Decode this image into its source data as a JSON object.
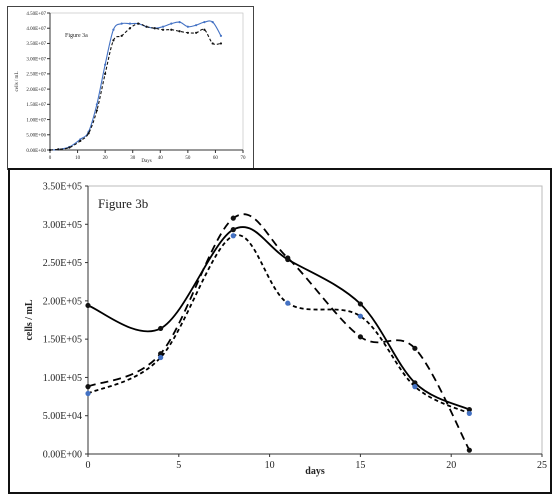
{
  "chart_data": [
    {
      "type": "line",
      "title": "Figure 3a",
      "xlabel": "Days",
      "ylabel": "cells / mL",
      "xlim": [
        0,
        70
      ],
      "ylim": [
        0,
        45000000
      ],
      "x_ticks": [
        0,
        10,
        20,
        30,
        40,
        50,
        60,
        70
      ],
      "x_tick_labels": [
        "0",
        "10",
        "20",
        "30",
        "40",
        "50",
        "60",
        "70"
      ],
      "y_ticks": [
        0,
        5000000,
        10000000,
        15000000,
        20000000,
        25000000,
        30000000,
        35000000,
        40000000,
        45000000
      ],
      "y_tick_labels": [
        "0.00E+00",
        "5.00E+06",
        "1.00E+07",
        "1.50E+07",
        "2.00E+07",
        "2.50E+07",
        "3.00E+07",
        "3.50E+07",
        "4.00E+07",
        "4.50E+07"
      ],
      "grid": false,
      "series": [
        {
          "color": "#4472c4",
          "dash": "solid",
          "x": [
            0,
            3,
            7,
            11,
            14,
            17,
            20,
            23,
            26,
            29,
            32,
            35,
            38,
            41,
            44,
            47,
            50,
            53,
            56,
            59,
            62
          ],
          "y": [
            0,
            200000,
            1000000,
            3500000,
            6000000,
            15000000,
            28000000,
            39500000,
            41500000,
            41500000,
            41500000,
            40500000,
            40000000,
            40500000,
            41500000,
            42000000,
            40500000,
            41000000,
            42000000,
            42000000,
            37500000
          ]
        },
        {
          "color": "#111111",
          "dash": "dashed",
          "x": [
            0,
            3,
            7,
            11,
            14,
            17,
            20,
            23,
            26,
            29,
            32,
            35,
            38,
            41,
            44,
            47,
            50,
            53,
            56,
            59,
            62
          ],
          "y": [
            0,
            200000,
            800000,
            3000000,
            5500000,
            13000000,
            25000000,
            36000000,
            37500000,
            40000000,
            41500000,
            40500000,
            40000000,
            39500000,
            39500000,
            39000000,
            38500000,
            38500000,
            39500000,
            35000000,
            35000000
          ]
        }
      ]
    },
    {
      "type": "line",
      "title": "Figure  3b",
      "xlabel": "days",
      "ylabel": "cells / mL",
      "xlim": [
        0,
        25
      ],
      "ylim": [
        0,
        350000
      ],
      "x_ticks": [
        0,
        5,
        10,
        15,
        20,
        25
      ],
      "x_tick_labels": [
        "0",
        "5",
        "10",
        "15",
        "20",
        "25"
      ],
      "y_ticks": [
        0,
        50000,
        100000,
        150000,
        200000,
        250000,
        300000,
        350000
      ],
      "y_tick_labels": [
        "0.00E+00",
        "5.00E+04",
        "1.00E+05",
        "1.50E+05",
        "2.00E+05",
        "2.50E+05",
        "3.00E+05",
        "3.50E+05"
      ],
      "grid": false,
      "series": [
        {
          "color": "#000000",
          "dash": "solid",
          "x": [
            0,
            4,
            8,
            11,
            15,
            18,
            21
          ],
          "y": [
            194000,
            164000,
            293000,
            254000,
            196000,
            93000,
            58000
          ]
        },
        {
          "color": "#000000",
          "dash": "dashed",
          "x": [
            0,
            4,
            8,
            11,
            15,
            18,
            21
          ],
          "y": [
            88000,
            131000,
            308000,
            256000,
            153000,
            138000,
            5000
          ]
        },
        {
          "color": "#000000",
          "dash": "dashed-short",
          "x": [
            0,
            4,
            8,
            11,
            15,
            18,
            21
          ],
          "y": [
            79000,
            126000,
            285000,
            197000,
            180000,
            88000,
            53000
          ]
        }
      ],
      "marker_colors": [
        "#111111",
        "#111111",
        "#4472c4"
      ]
    }
  ]
}
